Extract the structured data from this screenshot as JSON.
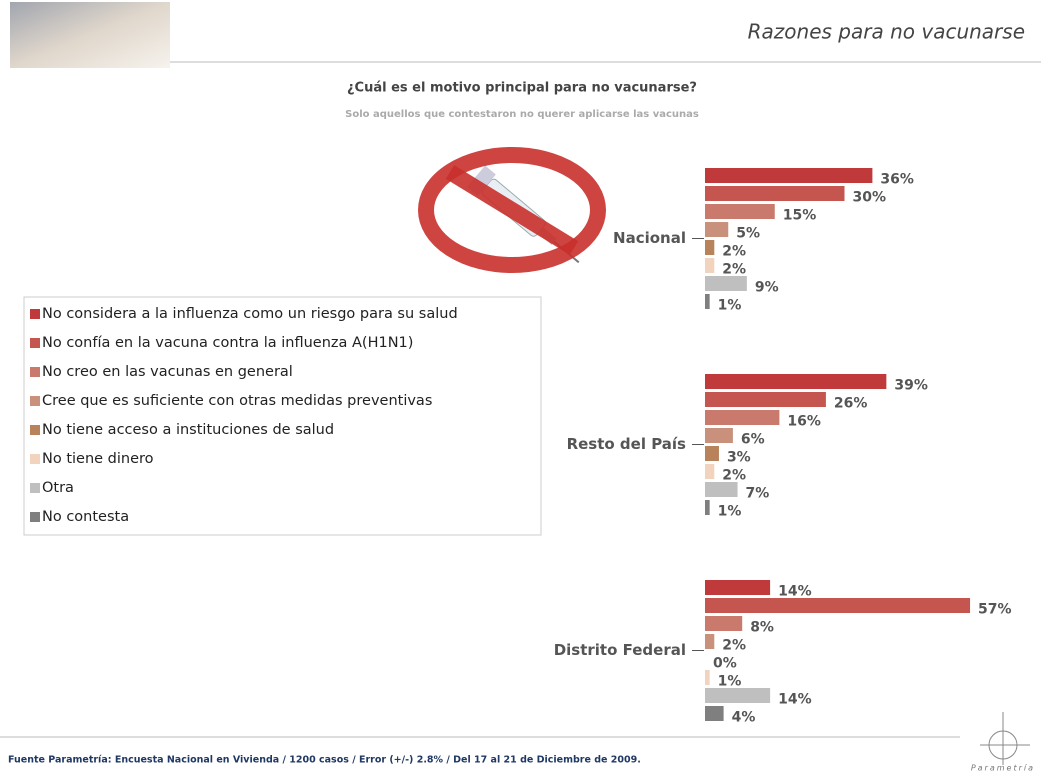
{
  "header": {
    "title": "Razones para no vacunarse"
  },
  "chart_data": {
    "type": "hbar",
    "title": "¿Cuál es el motivo principal para no vacunarse?",
    "subtitle": "Solo aquellos que contestaron no querer aplicarse las vacunas",
    "categories": [
      "Nacional",
      "Resto del País",
      "Distrito Federal"
    ],
    "series": [
      {
        "name": "No considera a la influenza como un riesgo para su salud",
        "color": "#c0393b",
        "values": [
          36,
          39,
          14
        ],
        "value_labels": [
          "36%",
          "39%",
          "14%"
        ]
      },
      {
        "name": "No confía en la vacuna contra la influenza A(H1N1)",
        "color": "#c4554f",
        "values": [
          30,
          26,
          57
        ],
        "value_labels": [
          "30%",
          "26%",
          "57%"
        ]
      },
      {
        "name": "No creo en las vacunas en general",
        "color": "#c97a6c",
        "values": [
          15,
          16,
          8
        ],
        "value_labels": [
          "15%",
          "16%",
          "8%"
        ]
      },
      {
        "name": "Cree que es suficiente con otras medidas preventivas",
        "color": "#c9907c",
        "values": [
          5,
          6,
          2
        ],
        "value_labels": [
          "5%",
          "6%",
          "2%"
        ]
      },
      {
        "name": "No tiene acceso a instituciones de salud",
        "color": "#b8825a",
        "values": [
          2,
          3,
          0
        ],
        "value_labels": [
          "2%",
          "3%",
          "0%"
        ]
      },
      {
        "name": "No tiene dinero",
        "color": "#f2d3bd",
        "values": [
          2,
          2,
          1
        ],
        "value_labels": [
          "2%",
          "2%",
          "1%"
        ]
      },
      {
        "name": "Otra",
        "color": "#bfbfbf",
        "values": [
          9,
          7,
          14
        ],
        "value_labels": [
          "9%",
          "7%",
          "14%"
        ]
      },
      {
        "name": "No contesta",
        "color": "#7f7f7f",
        "values": [
          1,
          1,
          4
        ],
        "value_labels": [
          "1%",
          "1%",
          "4%"
        ]
      }
    ]
  },
  "footer": {
    "source": "Fuente Parametría: Encuesta Nacional en Vivienda / 1200 casos / Error (+/-) 2.8% / Del 17 al 21 de Diciembre de 2009.",
    "logo": "Parametría"
  }
}
